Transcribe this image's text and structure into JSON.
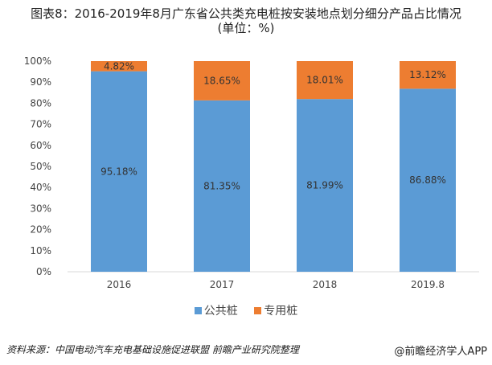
{
  "chart_data": {
    "type": "bar",
    "stacked": true,
    "title": "图表8：2016-2019年8月广东省公共类充电桩按安装地点划分细分产品占比情况",
    "subtitle": "(单位：%)",
    "categories": [
      "2016",
      "2017",
      "2018",
      "2019.8"
    ],
    "series": [
      {
        "name": "公共桩",
        "values": [
          95.18,
          81.35,
          81.99,
          86.88
        ],
        "labels": [
          "95.18%",
          "81.35%",
          "81.99%",
          "86.88%"
        ],
        "color": "#5b9bd5"
      },
      {
        "name": "专用桩",
        "values": [
          4.82,
          18.65,
          18.01,
          13.12
        ],
        "labels": [
          "4.82%",
          "18.65%",
          "18.01%",
          "13.12%"
        ],
        "color": "#ed7d31"
      }
    ],
    "ylim": [
      0,
      100
    ],
    "yticks": [
      "0%",
      "10%",
      "20%",
      "30%",
      "40%",
      "50%",
      "60%",
      "70%",
      "80%",
      "90%",
      "100%"
    ],
    "grid": false,
    "legend": "bottom"
  },
  "footer": {
    "source": "资料来源：中国电动汽车充电基础设施促进联盟 前瞻产业研究院整理",
    "app": "@前瞻经济学人APP"
  }
}
